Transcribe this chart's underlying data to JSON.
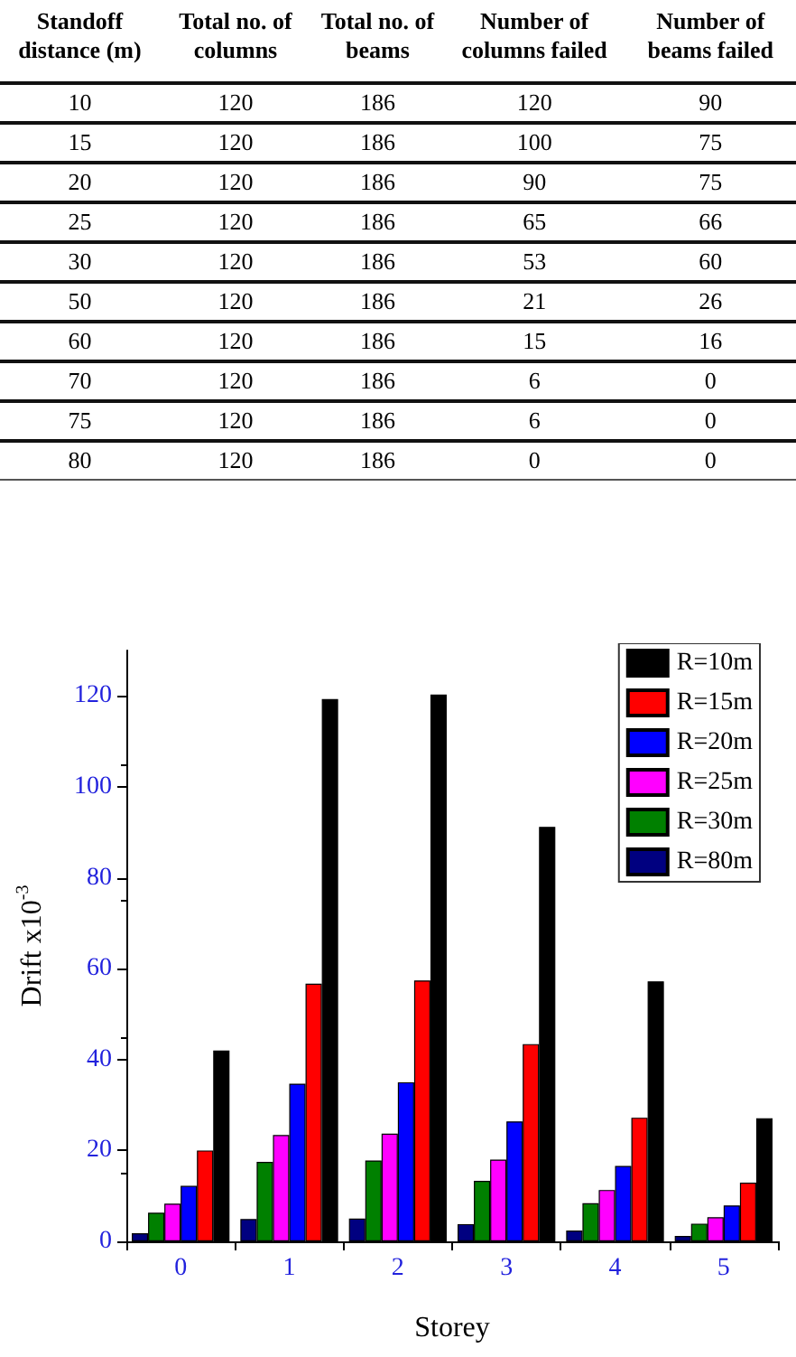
{
  "chart_data": [
    {
      "type": "other",
      "annotations": [
        "Standoff distance (m)",
        "Total no. of columns",
        "Total no. of beams",
        "Number of columns failed",
        "Number of beams failed",
        "10",
        "120",
        "186",
        "120",
        "90",
        "15",
        "120",
        "186",
        "100",
        "75",
        "20",
        "120",
        "186",
        "90",
        "75",
        "25",
        "120",
        "186",
        "65",
        "66",
        "30",
        "120",
        "186",
        "53",
        "60",
        "50",
        "120",
        "186",
        "21",
        "26",
        "60",
        "120",
        "186",
        "15",
        "16",
        "70",
        "120",
        "186",
        "6",
        "0",
        "75",
        "120",
        "186",
        "6",
        "0",
        "80",
        "120",
        "186",
        "0",
        "0"
      ]
    },
    {
      "type": "bar",
      "xlabel": "Storey",
      "ylabel": "Drift x10$^{-3}$",
      "categories": [
        "0",
        "1",
        "2",
        "3",
        "4",
        "5"
      ],
      "ylim": [
        0,
        130
      ],
      "yticks": [
        0,
        20,
        40,
        60,
        80,
        100,
        120
      ],
      "grid": false,
      "legend": "top right",
      "series": [
        {
          "name": "R=10m",
          "color": "#000000",
          "values": [
            42,
            119.3,
            120.3,
            91.2,
            57.2,
            27.1
          ]
        },
        {
          "name": "R=15m",
          "color": "#ff0000",
          "values": [
            20,
            56.7,
            57.4,
            43.4,
            27.2,
            12.9
          ]
        },
        {
          "name": "R=20m",
          "color": "#0000ff",
          "values": [
            12.2,
            34.7,
            35,
            26.4,
            16.6,
            7.9
          ]
        },
        {
          "name": "R=25m",
          "color": "#ff00ff",
          "values": [
            8.3,
            23.4,
            23.7,
            18,
            11.3,
            5.3
          ]
        },
        {
          "name": "R=30m",
          "color": "#008000",
          "values": [
            6.3,
            17.5,
            17.8,
            13.3,
            8.4,
            3.9
          ]
        },
        {
          "name": "R=80m",
          "color": "#000080",
          "values": [
            1.8,
            4.9,
            5,
            3.8,
            2.4,
            1.2
          ]
        }
      ]
    }
  ]
}
